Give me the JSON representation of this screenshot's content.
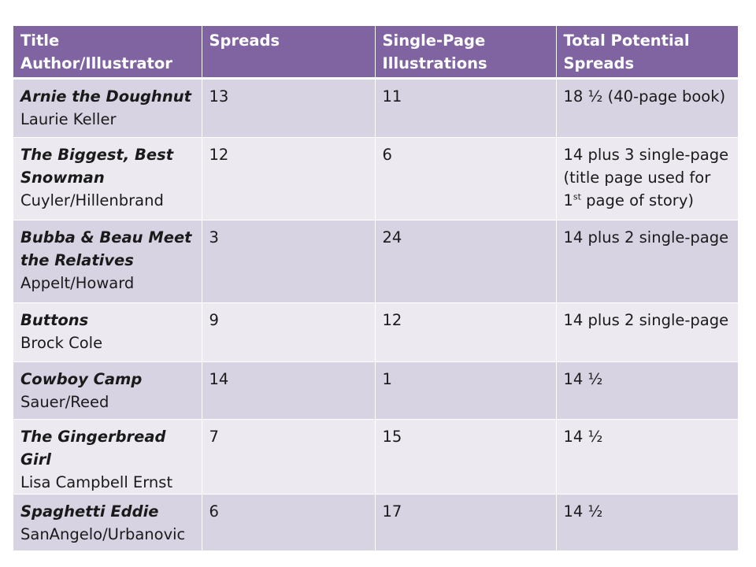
{
  "headers": {
    "col1_line1": "Title",
    "col1_line2": "Author/Illustrator",
    "col2": "Spreads",
    "col3_line1": "Single-Page",
    "col3_line2": "Illustrations",
    "col4_line1": "Total Potential",
    "col4_line2": "Spreads"
  },
  "rows": [
    {
      "title": "Arnie the Doughnut",
      "author": "Laurie Keller",
      "spreads": "13",
      "single_page": "11",
      "total": "18 ½ (40-page book)"
    },
    {
      "title_line1": "The Biggest, Best",
      "title_line2": "Snowman",
      "author": "Cuyler/Hillenbrand",
      "spreads": "12",
      "single_page": "6",
      "total_line1": "14 plus 3 single-page",
      "total_line2": "(title page used for",
      "total_line3_pre": "1",
      "total_line3_sup": "st",
      "total_line3_post": " page of story)"
    },
    {
      "title_line1": "Bubba & Beau Meet",
      "title_line2": "the Relatives",
      "author": "Appelt/Howard",
      "spreads": "3",
      "single_page": "24",
      "total": "14 plus 2 single-page"
    },
    {
      "title": "Buttons",
      "author": "Brock Cole",
      "spreads": "9",
      "single_page": "12",
      "total": "14 plus 2 single-page"
    },
    {
      "title": "Cowboy Camp",
      "author": "Sauer/Reed",
      "spreads": "14",
      "single_page": "1",
      "total": "14 ½"
    },
    {
      "title": "The Gingerbread Girl",
      "author": "Lisa Campbell Ernst",
      "spreads": "7",
      "single_page": "15",
      "total": "14 ½"
    },
    {
      "title": "Spaghetti Eddie",
      "author": "SanAngelo/Urbanovic",
      "spreads": "6",
      "single_page": "17",
      "total": "14 ½"
    }
  ],
  "colors": {
    "header_bg": "#8064a2",
    "row_odd_bg": "#d8d3e3",
    "row_even_bg": "#ece9f1"
  }
}
